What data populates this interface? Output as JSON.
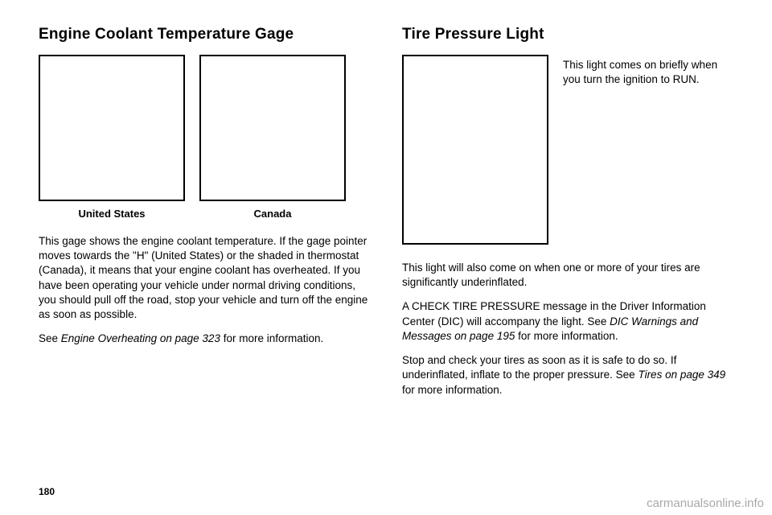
{
  "left": {
    "heading": "Engine Coolant Temperature Gage",
    "cap_us": "United States",
    "cap_ca": "Canada",
    "p1": "This gage shows the engine coolant temperature. If the gage pointer moves towards the \"H\" (United States) or the shaded in thermostat (Canada), it means that your engine coolant has overheated. If you have been operating your vehicle under normal driving conditions, you should pull off the road, stop your vehicle and turn off the engine as soon as possible.",
    "p2a": "See ",
    "p2b": "Engine Overheating on page 323",
    "p2c": " for more information."
  },
  "right": {
    "heading": "Tire Pressure Light",
    "side": "This light comes on briefly when you turn the ignition to RUN.",
    "p1": "This light will also come on when one or more of your tires are significantly underinflated.",
    "p2a": "A CHECK TIRE PRESSURE message in the Driver Information Center (DIC) will accompany the light. See ",
    "p2b": "DIC Warnings and Messages on page 195",
    "p2c": " for more information.",
    "p3a": "Stop and check your tires as soon as it is safe to do so. If underinflated, inflate to the proper pressure. See ",
    "p3b": "Tires on page 349",
    "p3c": " for more information."
  },
  "page_number": "180",
  "watermark": "carmanualsonline.info"
}
